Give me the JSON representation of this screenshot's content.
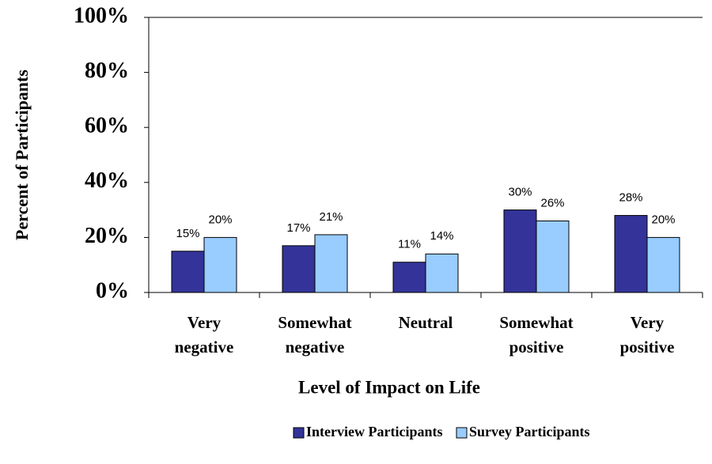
{
  "chart_data": {
    "type": "bar",
    "x_label": "Level of Impact on Life",
    "y_label": "Percent of Participants",
    "categories": [
      "Very negative",
      "Somewhat negative",
      "Neutral",
      "Somewhat positive",
      "Very positive"
    ],
    "series": [
      {
        "name": "Interview Participants",
        "color": "#333399",
        "values": [
          15,
          17,
          11,
          30,
          28
        ],
        "value_labels": [
          "15%",
          "17%",
          "11%",
          "30%",
          "28%"
        ]
      },
      {
        "name": "Survey Participants",
        "color": "#99ccff",
        "values": [
          20,
          21,
          14,
          26,
          20
        ],
        "value_labels": [
          "20%",
          "21%",
          "14%",
          "26%",
          "20%"
        ]
      }
    ],
    "ylim": [
      0,
      100
    ],
    "yticks": [
      {
        "value": 0,
        "label": "0%"
      },
      {
        "value": 20,
        "label": "20%"
      },
      {
        "value": 40,
        "label": "40%"
      },
      {
        "value": 60,
        "label": "60%"
      },
      {
        "value": 80,
        "label": "80%"
      },
      {
        "value": 100,
        "label": "100%"
      }
    ],
    "grid": false,
    "legend": "bottom"
  }
}
